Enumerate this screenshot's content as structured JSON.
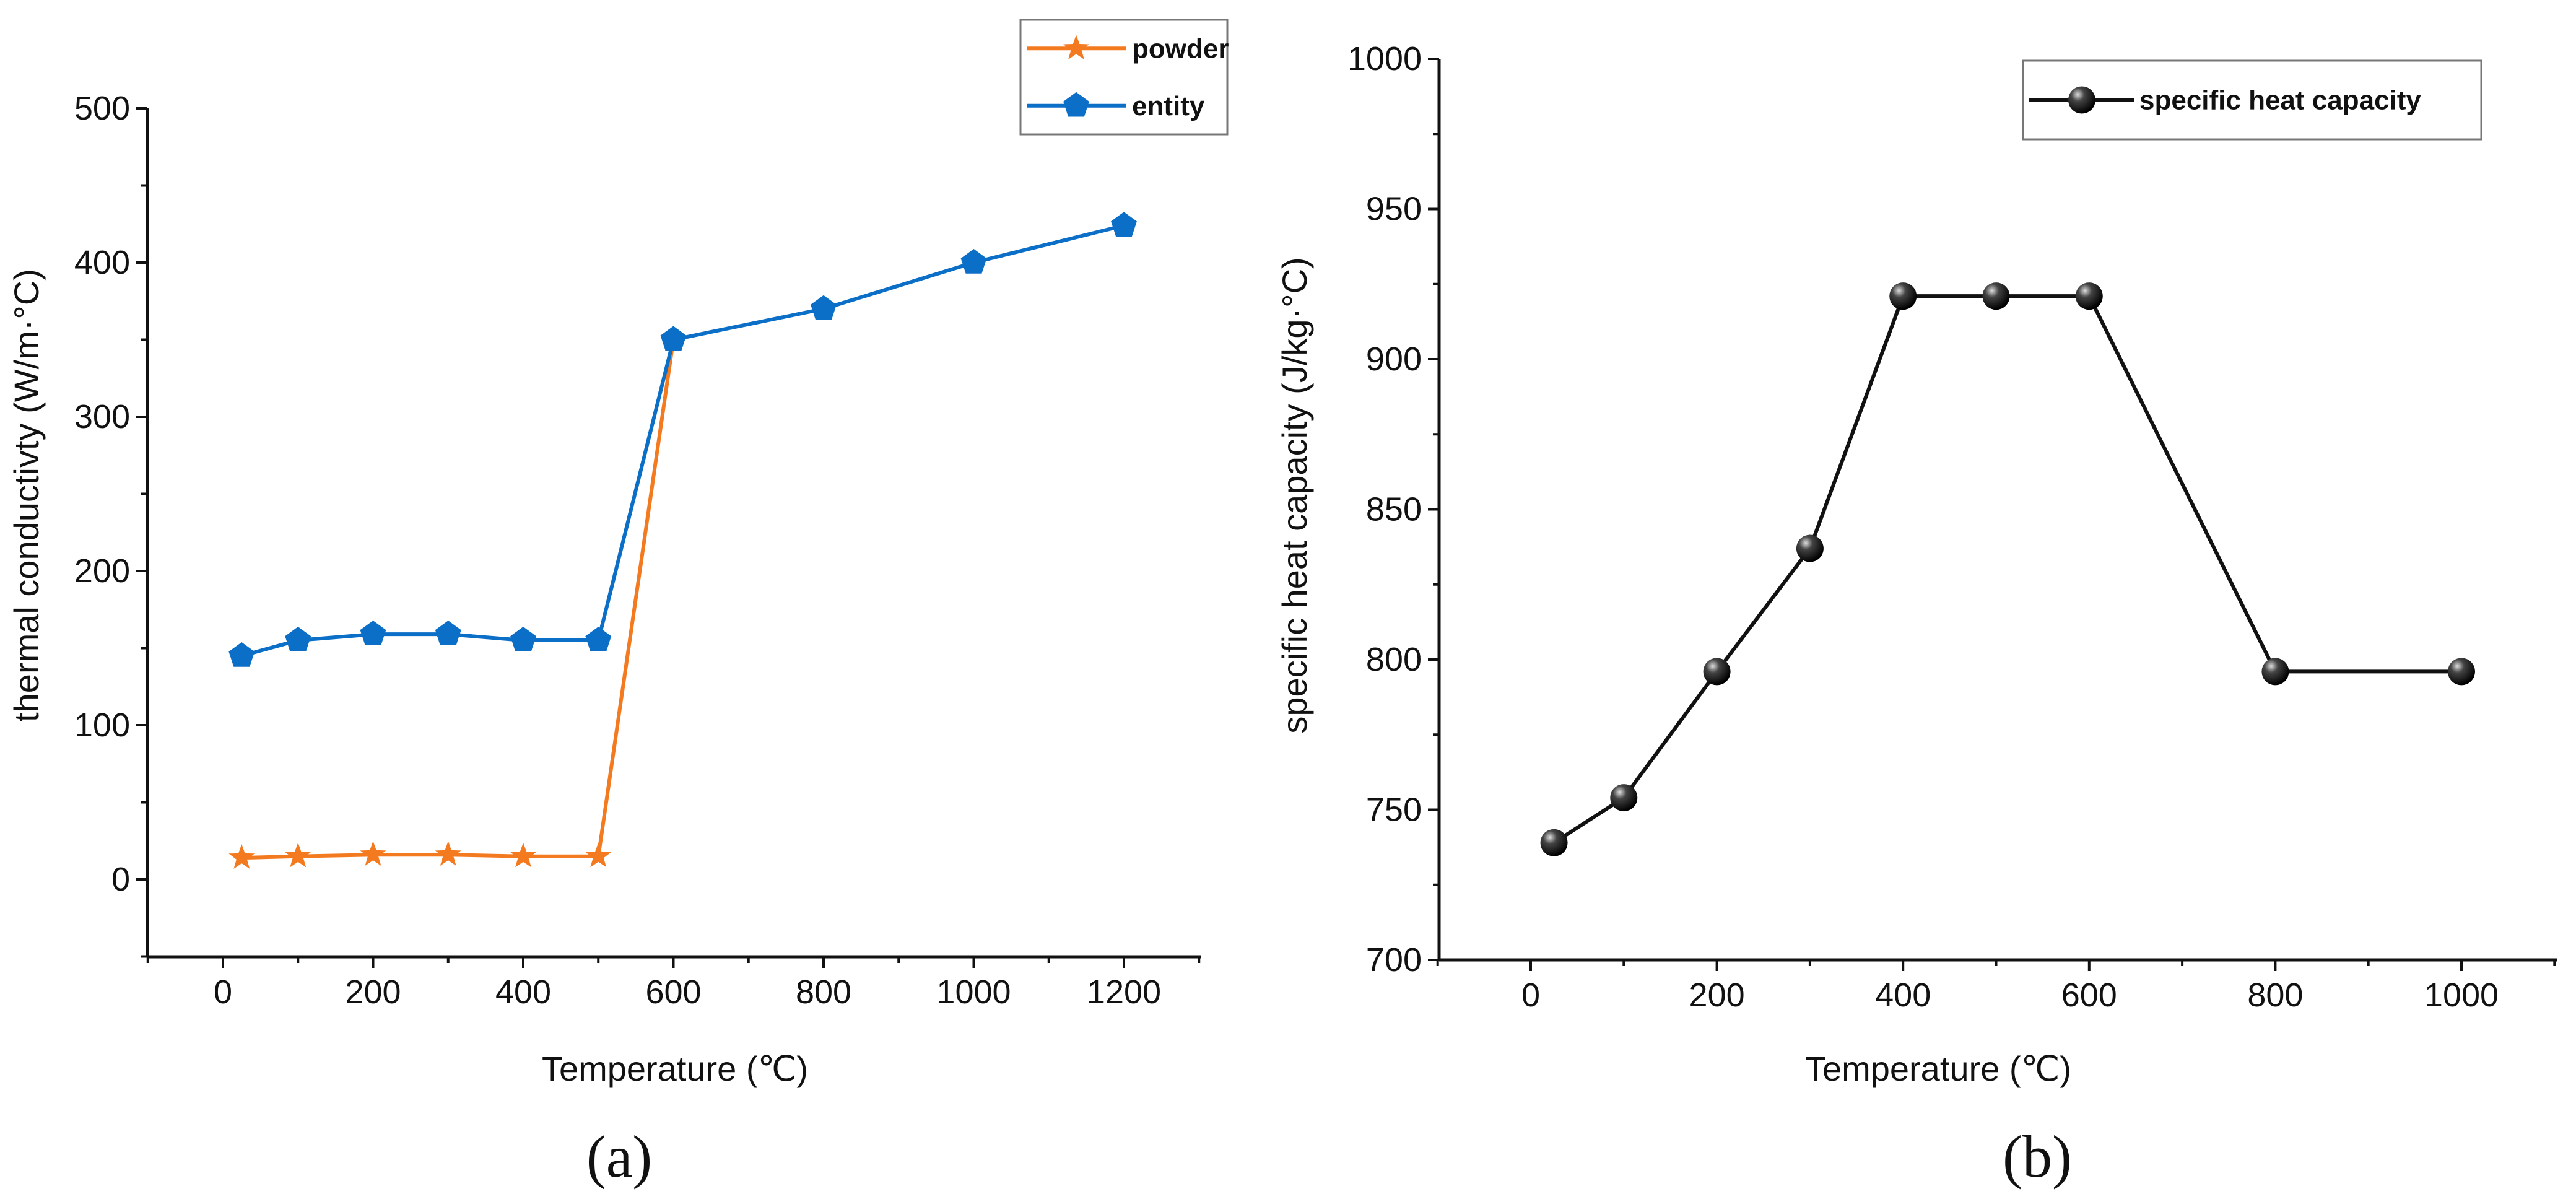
{
  "chart_data": [
    {
      "type": "line",
      "caption": "(a)",
      "xlabel": "Temperature  (℃)",
      "ylabel": "thermal conductivty  (W/m·°C)",
      "xlim": [
        -100,
        1300
      ],
      "ylim": [
        -50,
        500
      ],
      "xticks": [
        0,
        200,
        400,
        600,
        800,
        1000,
        1200
      ],
      "yticks": [
        0,
        100,
        200,
        300,
        400,
        500
      ],
      "grid": false,
      "legend": "top-right",
      "series": [
        {
          "name": "powder",
          "color": "#F47A20",
          "marker": "star",
          "x": [
            25,
            100,
            200,
            300,
            400,
            500,
            600
          ],
          "y": [
            14,
            15,
            16,
            16,
            15,
            15,
            350
          ]
        },
        {
          "name": "entity",
          "color": "#0B6FC7",
          "marker": "pentagon",
          "x": [
            25,
            100,
            200,
            300,
            400,
            500,
            600,
            800,
            1000,
            1200
          ],
          "y": [
            145,
            155,
            159,
            159,
            155,
            155,
            350,
            370,
            400,
            424
          ]
        }
      ]
    },
    {
      "type": "line",
      "caption": "(b)",
      "xlabel": "Temperature (℃)",
      "ylabel": "specific heat capacity  (J/kg·°C)",
      "xlim": [
        -100,
        1100
      ],
      "ylim": [
        700,
        1000
      ],
      "xticks": [
        0,
        200,
        400,
        600,
        800,
        1000
      ],
      "yticks": [
        700,
        750,
        800,
        850,
        900,
        950,
        1000
      ],
      "grid": false,
      "legend": "top-right",
      "series": [
        {
          "name": "specific heat capacity",
          "color": "#111111",
          "marker": "sphere",
          "x": [
            25,
            100,
            200,
            300,
            400,
            500,
            600,
            800,
            1000
          ],
          "y": [
            739,
            754,
            796,
            837,
            921,
            921,
            921,
            796,
            796
          ]
        }
      ]
    }
  ]
}
